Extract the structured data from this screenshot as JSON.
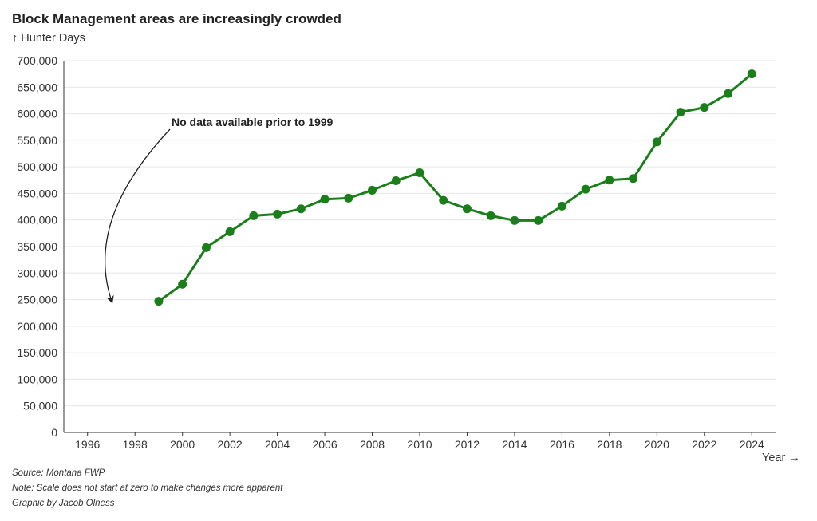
{
  "title": "Block Management areas are increasingly crowded",
  "y_axis_label": "↑ Hunter Days",
  "x_axis_label": "Year →",
  "notes": {
    "source": "Source: Montana FWP",
    "note": "Note: Scale does not start at zero to make changes more apparent",
    "credit": "Graphic by Jacob Olness"
  },
  "colors": {
    "line": "#1a7f1a",
    "grid": "#e6e6e6",
    "axis": "#333333"
  },
  "chart_data": {
    "type": "line",
    "title": "Block Management areas are increasingly crowded",
    "xlabel": "Year →",
    "ylabel": "↑ Hunter Days",
    "xlim": [
      1995,
      2025
    ],
    "ylim": [
      0,
      700000
    ],
    "grid": "horizontal",
    "x_ticks": [
      1996,
      1998,
      2000,
      2002,
      2004,
      2006,
      2008,
      2010,
      2012,
      2014,
      2016,
      2018,
      2020,
      2022,
      2024
    ],
    "y_ticks": [
      0,
      50000,
      100000,
      150000,
      200000,
      250000,
      300000,
      350000,
      400000,
      450000,
      500000,
      550000,
      600000,
      650000,
      700000
    ],
    "y_tick_labels": [
      "0",
      "50,000",
      "100,000",
      "150,000",
      "200,000",
      "250,000",
      "300,000",
      "350,000",
      "400,000",
      "450,000",
      "500,000",
      "550,000",
      "600,000",
      "650,000",
      "700,000"
    ],
    "x": [
      1999,
      2000,
      2001,
      2002,
      2003,
      2004,
      2005,
      2006,
      2007,
      2008,
      2009,
      2010,
      2011,
      2012,
      2013,
      2014,
      2015,
      2016,
      2017,
      2018,
      2019,
      2020,
      2021,
      2022,
      2023,
      2024
    ],
    "values": [
      247000,
      279000,
      348000,
      378000,
      408000,
      411000,
      421000,
      439000,
      441000,
      456000,
      474000,
      489000,
      437000,
      421000,
      408000,
      399000,
      399000,
      426000,
      458000,
      475000,
      478000,
      547000,
      603000,
      612000,
      638000,
      675000
    ],
    "annotation": {
      "text": "No data available prior to 1999",
      "arrow_to": {
        "x": 1997,
        "y": 245000
      }
    }
  }
}
